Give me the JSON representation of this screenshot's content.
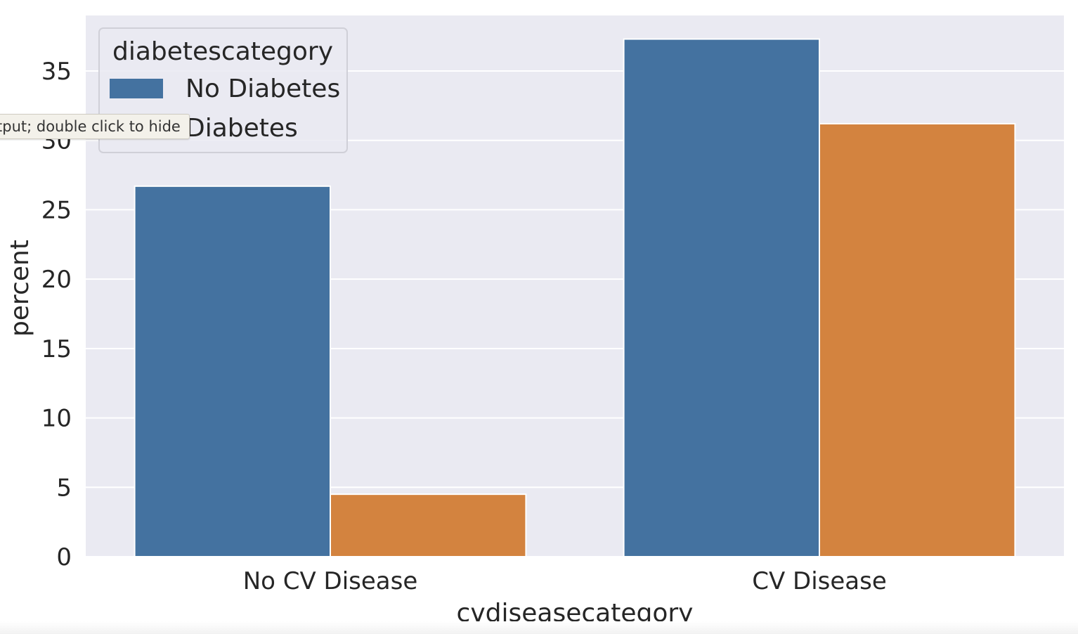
{
  "colors": {
    "plot_bg": "#eaeaf2",
    "grid": "#ffffff",
    "text": "#262626",
    "series": [
      "#4472a0",
      "#d3833f"
    ]
  },
  "tooltip": {
    "text": "tput; double click to hide"
  },
  "chart_data": {
    "type": "bar",
    "xlabel": "cvdiseasecategory",
    "ylabel": "percent",
    "categories": [
      "No CV Disease",
      "CV Disease"
    ],
    "series": [
      {
        "name": "No Diabetes",
        "values": [
          26.7,
          37.3
        ]
      },
      {
        "name": "Diabetes",
        "values": [
          4.5,
          31.2
        ]
      }
    ],
    "ylim": [
      0,
      39
    ],
    "yticks": [
      0,
      5,
      10,
      15,
      20,
      25,
      30,
      35
    ],
    "grid": true,
    "legend": {
      "title": "diabetescategory",
      "placement": "upper-left"
    }
  }
}
